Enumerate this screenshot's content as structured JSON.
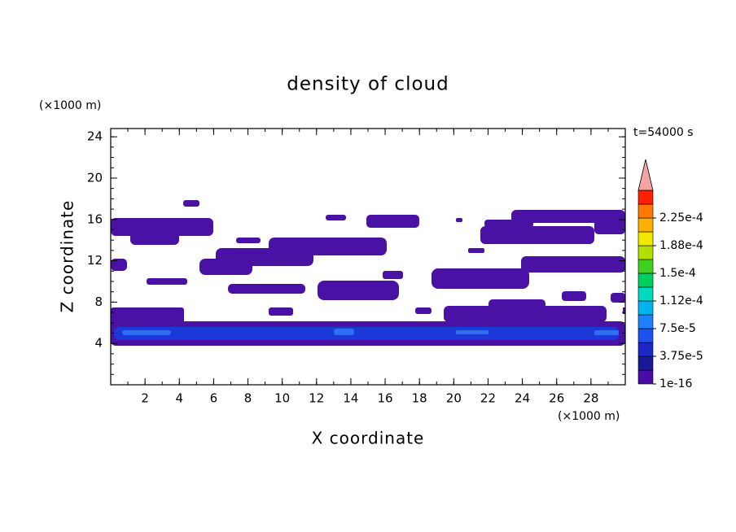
{
  "chart_data": {
    "type": "contour",
    "title": "density of cloud",
    "xlabel": "X coordinate",
    "ylabel": "Z coordinate",
    "x_unit": "(×1000 m)",
    "y_unit": "(×1000 m)",
    "annotation": "t=54000 s",
    "xlim": [
      0,
      30
    ],
    "ylim": [
      0,
      24.8
    ],
    "xticks": [
      2,
      4,
      6,
      8,
      10,
      12,
      14,
      16,
      18,
      20,
      22,
      24,
      26,
      28
    ],
    "yticks": [
      4,
      8,
      12,
      16,
      20,
      24
    ],
    "colorbar": {
      "colors": [
        "#4a0ca6",
        "#1a1896",
        "#1a28c8",
        "#1f50f0",
        "#1e80ff",
        "#00b4f0",
        "#00d8c0",
        "#00d060",
        "#40d020",
        "#b0e000",
        "#f0e800",
        "#ffb000",
        "#ff7800",
        "#ff2000"
      ],
      "levels": [
        {
          "value": 1e-16,
          "label": "1e-16"
        },
        {
          "value": 3.75e-05,
          "label": "3.75e-5"
        },
        {
          "value": 7.5e-05,
          "label": "7.5e-5"
        },
        {
          "value": 0.000112,
          "label": "1.12e-4"
        },
        {
          "value": 0.00015,
          "label": "1.5e-4"
        },
        {
          "value": 0.000188,
          "label": "1.88e-4"
        },
        {
          "value": 0.000225,
          "label": "2.25e-4"
        }
      ],
      "overflow_color": "#f4a4a4"
    }
  }
}
